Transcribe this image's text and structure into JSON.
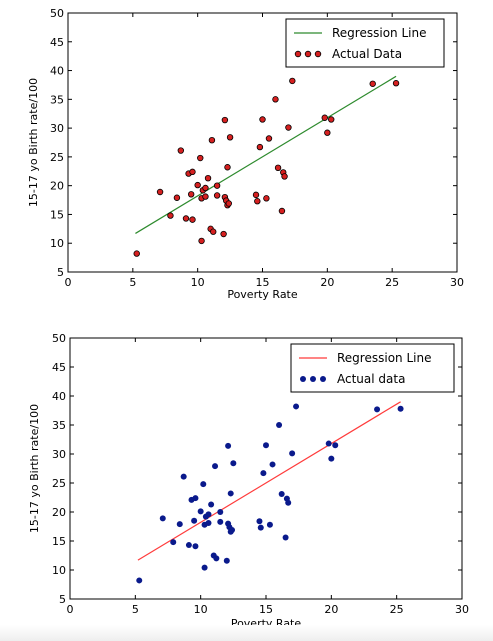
{
  "chart_data": [
    {
      "type": "scatter",
      "title": "",
      "xlabel": "Poverty Rate",
      "ylabel": "15-17 yo Birth rate/100",
      "xlim": [
        0,
        30
      ],
      "ylim": [
        5,
        50
      ],
      "xticks": [
        "0",
        "5",
        "10",
        "15",
        "20",
        "25",
        "30"
      ],
      "yticks": [
        "5",
        "10",
        "15",
        "20",
        "25",
        "30",
        "35",
        "40",
        "45",
        "50"
      ],
      "grid": false,
      "legend_position": "top-right",
      "line_series": {
        "name": "Regression Line",
        "color": "#2e8b2e",
        "points": [
          [
            5.2,
            11.7
          ],
          [
            25.3,
            39.0
          ]
        ]
      },
      "scatter_series": {
        "name": "Actual Data",
        "face_color": "#d62020",
        "edge_color": "#000000",
        "points": [
          [
            5.3,
            8.2
          ],
          [
            7.1,
            18.9
          ],
          [
            7.9,
            14.8
          ],
          [
            8.4,
            17.9
          ],
          [
            8.7,
            26.1
          ],
          [
            9.1,
            14.3
          ],
          [
            9.3,
            22.1
          ],
          [
            9.5,
            18.5
          ],
          [
            9.6,
            22.4
          ],
          [
            9.6,
            14.1
          ],
          [
            10.0,
            20.1
          ],
          [
            10.2,
            24.8
          ],
          [
            10.3,
            10.4
          ],
          [
            10.3,
            17.8
          ],
          [
            10.4,
            19.2
          ],
          [
            10.6,
            19.6
          ],
          [
            10.6,
            18.1
          ],
          [
            10.8,
            21.3
          ],
          [
            11.0,
            12.5
          ],
          [
            11.1,
            27.9
          ],
          [
            11.2,
            12.0
          ],
          [
            11.5,
            18.3
          ],
          [
            11.5,
            20.0
          ],
          [
            12.0,
            11.6
          ],
          [
            12.1,
            31.4
          ],
          [
            12.1,
            18.0
          ],
          [
            12.2,
            17.4
          ],
          [
            12.3,
            23.2
          ],
          [
            12.3,
            16.6
          ],
          [
            12.4,
            16.9
          ],
          [
            12.5,
            28.4
          ],
          [
            14.5,
            18.4
          ],
          [
            14.6,
            17.3
          ],
          [
            14.8,
            26.7
          ],
          [
            15.0,
            31.5
          ],
          [
            15.3,
            17.8
          ],
          [
            15.5,
            28.2
          ],
          [
            16.0,
            35.0
          ],
          [
            16.2,
            23.1
          ],
          [
            16.5,
            15.6
          ],
          [
            16.6,
            22.3
          ],
          [
            16.7,
            21.6
          ],
          [
            17.0,
            30.1
          ],
          [
            17.3,
            38.2
          ],
          [
            19.8,
            31.8
          ],
          [
            20.0,
            29.2
          ],
          [
            20.3,
            31.5
          ],
          [
            23.5,
            37.7
          ],
          [
            25.3,
            37.8
          ]
        ]
      }
    },
    {
      "type": "scatter",
      "title": "",
      "xlabel": "Poverty Rate",
      "ylabel": "15-17 yo Birth rate/100",
      "xlim": [
        0,
        30
      ],
      "ylim": [
        5,
        50
      ],
      "xticks": [
        "0",
        "5",
        "10",
        "15",
        "20",
        "25",
        "30"
      ],
      "yticks": [
        "5",
        "10",
        "15",
        "20",
        "25",
        "30",
        "35",
        "40",
        "45",
        "50"
      ],
      "grid": false,
      "legend_position": "top-right",
      "line_series": {
        "name": "Regression Line",
        "color": "#ff3b3b",
        "points": [
          [
            5.2,
            11.7
          ],
          [
            25.3,
            39.0
          ]
        ]
      },
      "scatter_series": {
        "name": "Actual data",
        "face_color": "#0a1a8c",
        "edge_color": "#0a1a8c",
        "points": [
          [
            5.3,
            8.2
          ],
          [
            7.1,
            18.9
          ],
          [
            7.9,
            14.8
          ],
          [
            8.4,
            17.9
          ],
          [
            8.7,
            26.1
          ],
          [
            9.1,
            14.3
          ],
          [
            9.3,
            22.1
          ],
          [
            9.5,
            18.5
          ],
          [
            9.6,
            22.4
          ],
          [
            9.6,
            14.1
          ],
          [
            10.0,
            20.1
          ],
          [
            10.2,
            24.8
          ],
          [
            10.3,
            10.4
          ],
          [
            10.3,
            17.8
          ],
          [
            10.4,
            19.2
          ],
          [
            10.6,
            19.6
          ],
          [
            10.6,
            18.1
          ],
          [
            10.8,
            21.3
          ],
          [
            11.0,
            12.5
          ],
          [
            11.1,
            27.9
          ],
          [
            11.2,
            12.0
          ],
          [
            11.5,
            18.3
          ],
          [
            11.5,
            20.0
          ],
          [
            12.0,
            11.6
          ],
          [
            12.1,
            31.4
          ],
          [
            12.1,
            18.0
          ],
          [
            12.2,
            17.4
          ],
          [
            12.3,
            23.2
          ],
          [
            12.3,
            16.6
          ],
          [
            12.4,
            16.9
          ],
          [
            12.5,
            28.4
          ],
          [
            14.5,
            18.4
          ],
          [
            14.6,
            17.3
          ],
          [
            14.8,
            26.7
          ],
          [
            15.0,
            31.5
          ],
          [
            15.3,
            17.8
          ],
          [
            15.5,
            28.2
          ],
          [
            16.0,
            35.0
          ],
          [
            16.2,
            23.1
          ],
          [
            16.5,
            15.6
          ],
          [
            16.6,
            22.3
          ],
          [
            16.7,
            21.6
          ],
          [
            17.0,
            30.1
          ],
          [
            17.3,
            38.2
          ],
          [
            19.8,
            31.8
          ],
          [
            20.0,
            29.2
          ],
          [
            20.3,
            31.5
          ],
          [
            23.5,
            37.7
          ],
          [
            25.3,
            37.8
          ]
        ]
      }
    }
  ]
}
